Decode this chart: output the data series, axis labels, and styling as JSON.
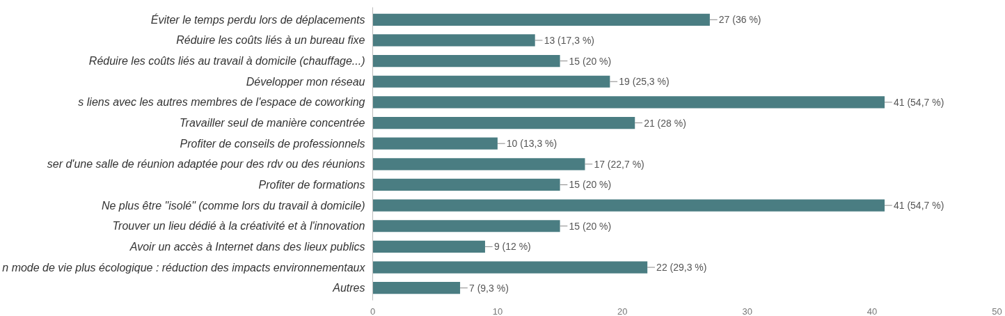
{
  "chart_data": {
    "type": "bar",
    "orientation": "horizontal",
    "categories": [
      "Éviter le temps perdu lors de déplacements",
      "Réduire les coûts liés à un bureau fixe",
      "Réduire les coûts liés au travail à domicile (chauffage...)",
      "Développer mon réseau",
      "s liens avec les autres membres de l'espace de coworking",
      "Travailler seul de manière concentrée",
      "Profiter de conseils de professionnels",
      "ser d'une salle de réunion adaptée pour des rdv ou des réunions",
      "Profiter de formations",
      "Ne plus être \"isolé\" (comme lors du travail à domicile)",
      "Trouver un lieu dédié à la créativité et à l'innovation",
      "Avoir un accès à Internet dans des lieux publics",
      "n mode de vie plus écologique : réduction des impacts environnementaux",
      "Autres"
    ],
    "values": [
      27,
      13,
      15,
      19,
      41,
      21,
      10,
      17,
      15,
      41,
      15,
      9,
      22,
      7
    ],
    "value_labels": [
      "27 (36 %)",
      "13 (17,3 %)",
      "15 (20 %)",
      "19 (25,3 %)",
      "41 (54,7 %)",
      "21 (28 %)",
      "10 (13,3 %)",
      "17 (22,7 %)",
      "15 (20 %)",
      "41 (54,7 %)",
      "15 (20 %)",
      "9 (12 %)",
      "22 (29,3 %)",
      "7 (9,3 %)"
    ],
    "color": "#4a7d82",
    "xlim": [
      0,
      50
    ],
    "xticks": [
      0,
      10,
      20,
      30,
      40,
      50
    ],
    "grid": false
  }
}
